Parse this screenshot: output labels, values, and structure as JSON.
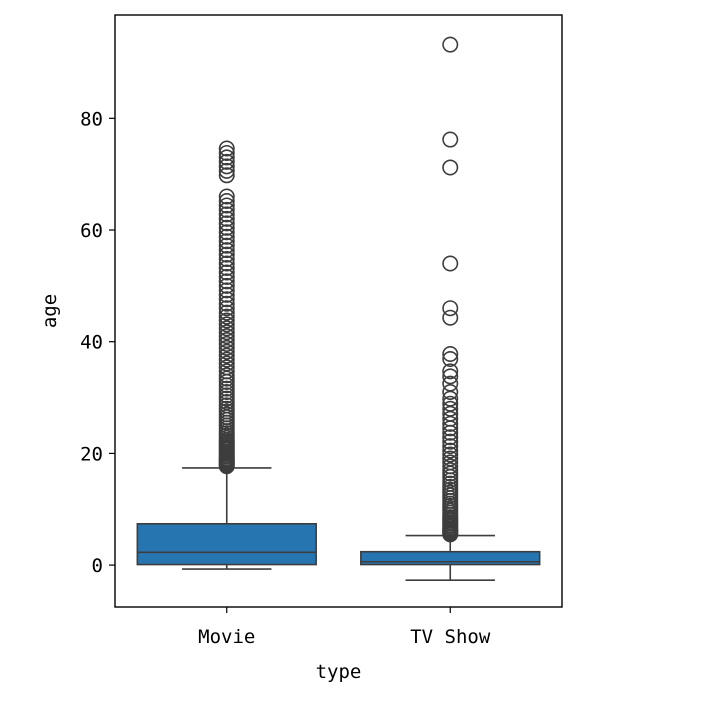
{
  "chart_data": {
    "type": "box",
    "xlabel": "type",
    "ylabel": "age",
    "categories": [
      "Movie",
      "TV Show"
    ],
    "ylim": [
      -7.5,
      98.5
    ],
    "yticks": [
      0,
      20,
      40,
      60,
      80
    ],
    "grid": false,
    "box_color": "#2775b0",
    "boxes": [
      {
        "category": "Movie",
        "whisker_low": -0.7,
        "q1": 0.1,
        "median": 2.3,
        "q3": 7.4,
        "whisker_high": 17.4,
        "outliers": [
          17.7,
          17.9,
          18.1,
          18.3,
          18.5,
          18.7,
          18.9,
          19.1,
          19.4,
          19.7,
          20.0,
          20.3,
          20.6,
          20.9,
          21.2,
          21.5,
          21.8,
          22.1,
          22.4,
          22.8,
          23.2,
          23.6,
          24.0,
          24.5,
          25.0,
          25.5,
          26.0,
          26.5,
          27.0,
          27.5,
          28.0,
          28.6,
          29.2,
          29.8,
          30.4,
          31.0,
          31.6,
          32.2,
          32.8,
          33.4,
          34.0,
          34.7,
          35.4,
          36.1,
          36.8,
          37.5,
          38.2,
          38.9,
          39.6,
          40.3,
          41.0,
          41.7,
          42.4,
          43.1,
          43.8,
          44.5,
          45.2,
          46.0,
          46.8,
          47.6,
          48.4,
          49.2,
          50.0,
          50.8,
          51.6,
          52.4,
          53.2,
          54.0,
          54.8,
          55.6,
          56.4,
          57.2,
          58.0,
          58.8,
          59.6,
          60.4,
          61.2,
          62.0,
          62.8,
          63.6,
          64.4,
          65.2,
          66.0,
          69.8,
          70.6,
          71.4,
          72.2,
          73.0,
          73.8,
          74.6
        ]
      },
      {
        "category": "TV Show",
        "whisker_low": -2.7,
        "q1": 0.1,
        "median": 0.6,
        "q3": 2.4,
        "whisker_high": 5.3,
        "outliers": [
          5.5,
          5.7,
          5.9,
          6.1,
          6.3,
          6.5,
          6.8,
          7.1,
          7.4,
          7.7,
          8.0,
          8.3,
          8.6,
          9.0,
          9.4,
          9.8,
          10.2,
          10.6,
          11.0,
          11.5,
          12.0,
          12.5,
          13.0,
          13.5,
          14.0,
          14.6,
          15.2,
          15.8,
          16.4,
          17.0,
          17.7,
          18.4,
          19.1,
          19.8,
          20.5,
          21.3,
          22.1,
          22.9,
          23.7,
          24.5,
          25.3,
          26.2,
          27.1,
          28.0,
          28.9,
          29.8,
          31.0,
          32.5,
          33.8,
          34.7,
          36.9,
          37.8,
          44.3,
          46.0,
          54.0,
          71.2,
          76.2,
          93.2
        ]
      }
    ]
  }
}
